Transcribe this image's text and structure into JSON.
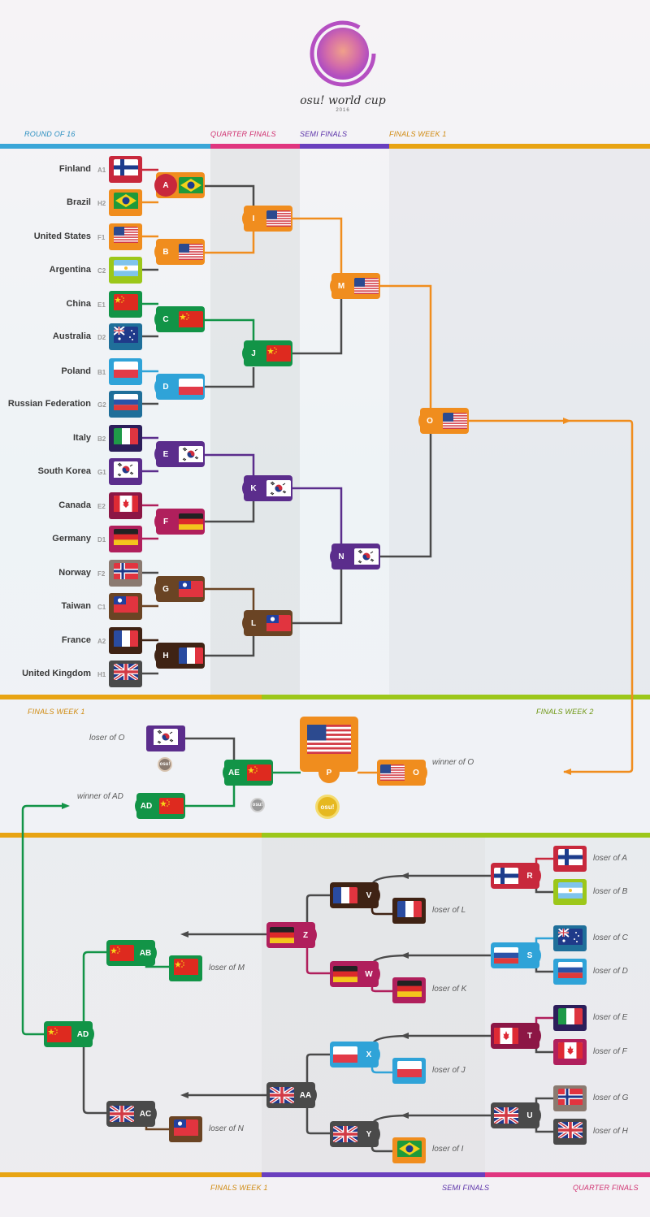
{
  "logo": {
    "title": "osu! world cup",
    "year": "2016"
  },
  "sections_top": {
    "round_of_16": "ROUND OF 16",
    "quarter_finals": "QUARTER FINALS",
    "semi_finals": "SEMI FINALS",
    "finals_week_1": "FINALS WEEK 1"
  },
  "sections_mid": {
    "finals_week_1": "FINALS WEEK 1",
    "finals_week_2": "FINALS WEEK 2"
  },
  "sections_bottom": {
    "finals_week_1": "FINALS WEEK 1",
    "semi_finals": "SEMI FINALS",
    "quarter_finals": "QUARTER FINALS"
  },
  "teams": [
    {
      "name": "Finland",
      "seed": "A1"
    },
    {
      "name": "Brazil",
      "seed": "H2"
    },
    {
      "name": "United States",
      "seed": "F1"
    },
    {
      "name": "Argentina",
      "seed": "C2"
    },
    {
      "name": "China",
      "seed": "E1"
    },
    {
      "name": "Australia",
      "seed": "D2"
    },
    {
      "name": "Poland",
      "seed": "B1"
    },
    {
      "name": "Russian Federation",
      "seed": "G2"
    },
    {
      "name": "Italy",
      "seed": "B2"
    },
    {
      "name": "South Korea",
      "seed": "G1"
    },
    {
      "name": "Canada",
      "seed": "E2"
    },
    {
      "name": "Germany",
      "seed": "D1"
    },
    {
      "name": "Norway",
      "seed": "F2"
    },
    {
      "name": "Taiwan",
      "seed": "C1"
    },
    {
      "name": "France",
      "seed": "A2"
    },
    {
      "name": "United Kingdom",
      "seed": "H1"
    }
  ],
  "matches": {
    "A": "A",
    "B": "B",
    "C": "C",
    "D": "D",
    "E": "E",
    "F": "F",
    "G": "G",
    "H": "H",
    "I": "I",
    "J": "J",
    "K": "K",
    "L": "L",
    "M": "M",
    "N": "N",
    "O": "O",
    "P": "P",
    "AE": "AE",
    "AD": "AD",
    "R": "R",
    "S": "S",
    "T": "T",
    "U": "U",
    "V": "V",
    "W": "W",
    "X": "X",
    "Y": "Y",
    "Z": "Z",
    "AA": "AA",
    "AB": "AB",
    "AC": "AC"
  },
  "labels": {
    "loser_of_O": "loser of O",
    "winner_of_AD": "winner of AD",
    "winner_of_O": "winner of O",
    "loser_of_A": "loser of A",
    "loser_of_B": "loser of B",
    "loser_of_C": "loser of C",
    "loser_of_D": "loser of D",
    "loser_of_E": "loser of E",
    "loser_of_F": "loser of F",
    "loser_of_G": "loser of G",
    "loser_of_H": "loser of H",
    "loser_of_L": "loser of L",
    "loser_of_K": "loser of K",
    "loser_of_J": "loser of J",
    "loser_of_I": "loser of I",
    "loser_of_M": "loser of M",
    "loser_of_N": "loser of N"
  },
  "badge": {
    "text": "osu!"
  },
  "colors": {
    "blue_bar": "#3aa6d8",
    "pink_bar": "#e0357f",
    "purple_bar": "#6a3fbe",
    "orange_bar": "#e8a413",
    "green_bar": "#9cc71a",
    "red": "#c8283c",
    "orange": "#f08d1e",
    "green": "#129447",
    "lightblue": "#2fa3d8",
    "purple": "#5b2d8c",
    "magenta": "#b01f5c",
    "brown": "#6a4424",
    "darkbrown": "#3f2314",
    "gray": "#4a4a4a"
  }
}
